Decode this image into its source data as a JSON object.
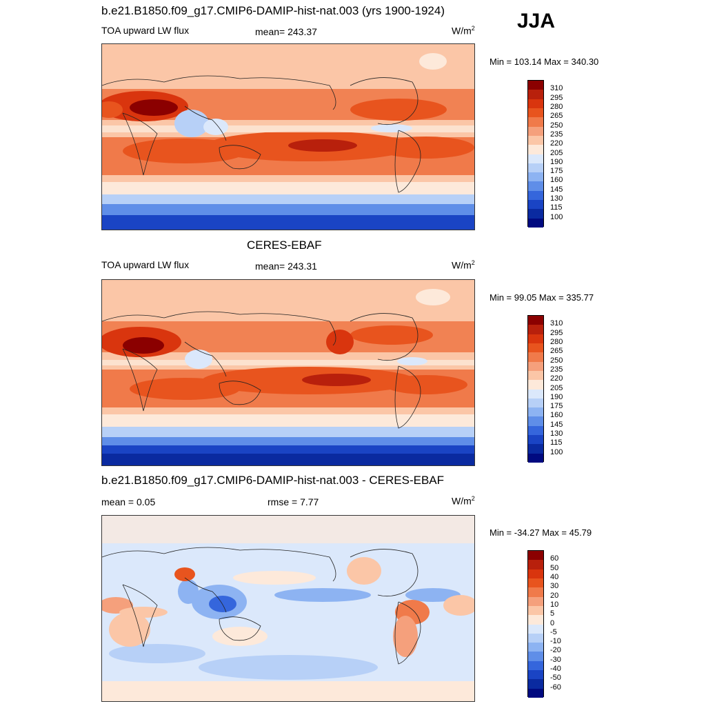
{
  "season": "JJA",
  "panels": [
    {
      "title": "b.e21.B1850.f09_g17.CMIP6-DAMIP-hist-nat.003 (yrs 1900-1924)",
      "left_label": "TOA upward LW flux",
      "center_label": "mean= 243.37",
      "units": "W/m",
      "units_sup": "2",
      "minmax": "Min = 103.14 Max = 340.30"
    },
    {
      "title": "CERES-EBAF",
      "left_label": "TOA upward LW flux",
      "center_label": "mean= 243.31",
      "units": "W/m",
      "units_sup": "2",
      "minmax": "Min =  99.05 Max = 335.77"
    },
    {
      "title": "b.e21.B1850.f09_g17.CMIP6-DAMIP-hist-nat.003 - CERES-EBAF",
      "left_label": "mean =   0.05",
      "center_label": "rmse =   7.77",
      "units": "W/m",
      "units_sup": "2",
      "minmax": "Min = -34.27 Max =  45.79"
    }
  ],
  "colorbars": {
    "absolute": {
      "labels": [
        "310",
        "295",
        "280",
        "265",
        "250",
        "235",
        "220",
        "205",
        "190",
        "175",
        "160",
        "145",
        "130",
        "115",
        "100"
      ],
      "colors": [
        "#8b0000",
        "#b8200c",
        "#d9350e",
        "#e8541e",
        "#f07a4a",
        "#f5a07c",
        "#fbc6a7",
        "#fde9da",
        "#dbe8fb",
        "#b7d0f7",
        "#8db3f2",
        "#5f8ee8",
        "#3566dc",
        "#1a44c4",
        "#0a2aa0",
        "#000a80"
      ]
    },
    "difference": {
      "labels": [
        "60",
        "50",
        "40",
        "30",
        "20",
        "10",
        "5",
        "0",
        "-5",
        "-10",
        "-20",
        "-30",
        "-40",
        "-50",
        "-60"
      ],
      "colors": [
        "#8b0000",
        "#b8200c",
        "#d9350e",
        "#e8541e",
        "#f07a4a",
        "#f5a07c",
        "#fbc6a7",
        "#fde9da",
        "#dbe8fb",
        "#b7d0f7",
        "#8db3f2",
        "#5f8ee8",
        "#3566dc",
        "#1a44c4",
        "#0a2aa0",
        "#000a80"
      ]
    }
  }
}
